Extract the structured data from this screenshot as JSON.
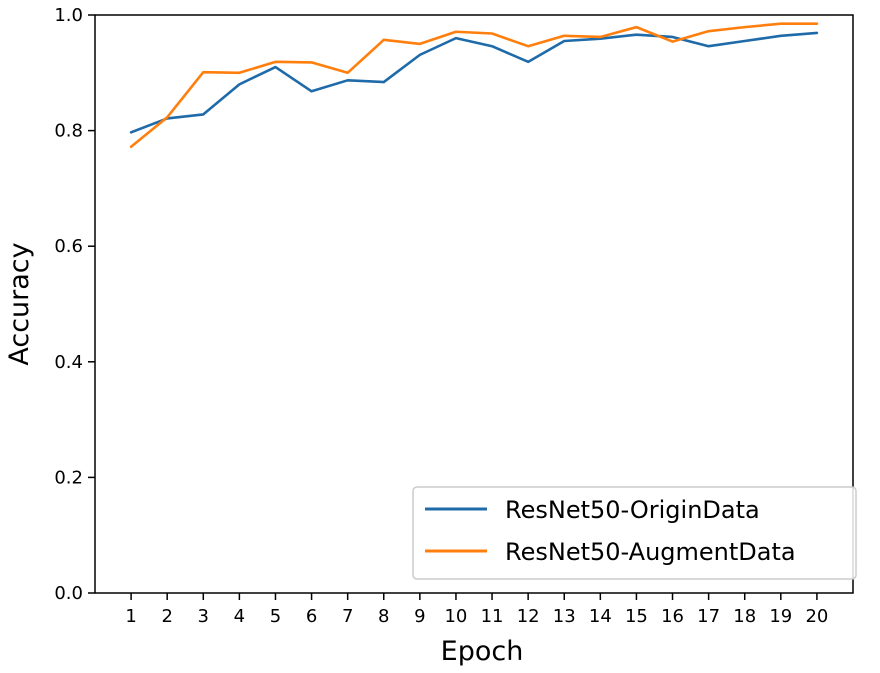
{
  "chart_data": {
    "type": "line",
    "title": "",
    "xlabel": "Epoch",
    "ylabel": "Accuracy",
    "x": [
      1,
      2,
      3,
      4,
      5,
      6,
      7,
      8,
      9,
      10,
      11,
      12,
      13,
      14,
      15,
      16,
      17,
      18,
      19,
      20
    ],
    "xlim": [
      0,
      21
    ],
    "ylim": [
      0.0,
      1.0
    ],
    "yticks": [
      0.0,
      0.2,
      0.4,
      0.6,
      0.8,
      1.0
    ],
    "ytick_labels": [
      "0.0",
      "0.2",
      "0.4",
      "0.6",
      "0.8",
      "1.0"
    ],
    "xticks": [
      1,
      2,
      3,
      4,
      5,
      6,
      7,
      8,
      9,
      10,
      11,
      12,
      13,
      14,
      15,
      16,
      17,
      18,
      19,
      20
    ],
    "xtick_labels": [
      "1",
      "2",
      "3",
      "4",
      "5",
      "6",
      "7",
      "8",
      "9",
      "10",
      "11",
      "12",
      "13",
      "14",
      "15",
      "16",
      "17",
      "18",
      "19",
      "20"
    ],
    "grid": false,
    "legend_position": "bottom-right",
    "series": [
      {
        "name": "ResNet50-OriginData",
        "color": "#1f6aa8",
        "values": [
          0.797,
          0.821,
          0.828,
          0.88,
          0.91,
          0.868,
          0.887,
          0.884,
          0.931,
          0.96,
          0.946,
          0.919,
          0.955,
          0.959,
          0.966,
          0.962,
          0.946,
          0.955,
          0.964,
          0.969
        ]
      },
      {
        "name": "ResNet50-AugmentData",
        "color": "#ff7f0e",
        "values": [
          0.772,
          0.823,
          0.901,
          0.9,
          0.919,
          0.918,
          0.9,
          0.957,
          0.95,
          0.971,
          0.968,
          0.946,
          0.964,
          0.962,
          0.979,
          0.954,
          0.972,
          0.979,
          0.985,
          0.985
        ]
      }
    ]
  }
}
